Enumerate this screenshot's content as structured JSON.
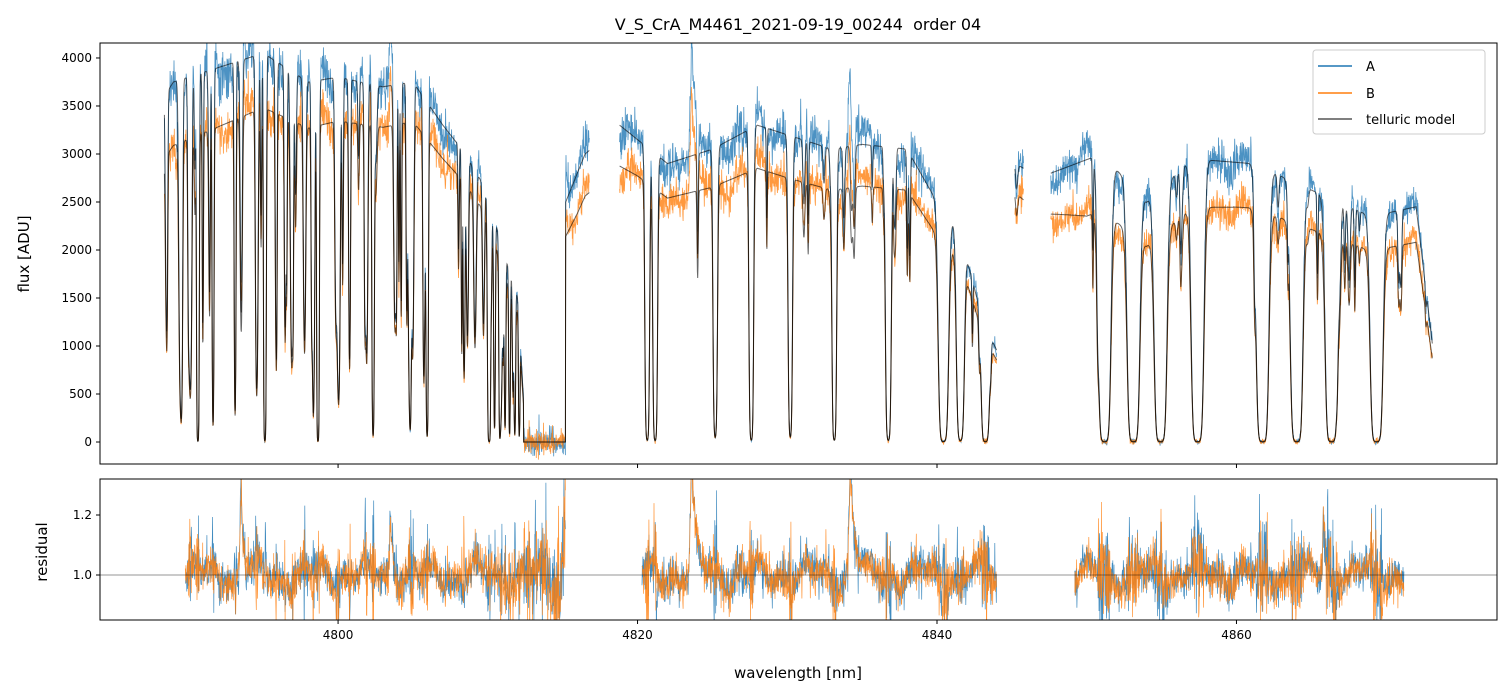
{
  "chart_data": [
    {
      "type": "line",
      "title": "V_S_CrA_M4461_2021-09-19_00244  order 04",
      "xlabel": "wavelength [nm]",
      "ylabel": "flux [ADU]",
      "xlim": [
        4784.1,
        4877.4
      ],
      "ylim": [
        -229,
        4156
      ],
      "xticks": [
        4800,
        4820,
        4840,
        4860
      ],
      "xtick_labels": [
        "4800",
        "4820",
        "4840",
        "4860"
      ],
      "yticks": [
        0,
        500,
        1000,
        1500,
        2000,
        2500,
        3000,
        3500,
        4000
      ],
      "ytick_labels": [
        "0",
        "500",
        "1000",
        "1500",
        "2000",
        "2500",
        "3000",
        "3500",
        "4000"
      ],
      "grid": false,
      "legend": {
        "placement": "top-right",
        "entries": [
          {
            "label": "A",
            "color": "#1f77b4"
          },
          {
            "label": "B",
            "color": "#ff7f0e"
          },
          {
            "label": "telluric model",
            "color": "#555555"
          }
        ]
      },
      "segments": [
        [
          4788.4,
          4816.8
        ],
        [
          4818.8,
          4844.0
        ],
        [
          4845.2,
          4845.8
        ],
        [
          4847.6,
          4873.1
        ]
      ],
      "blocked_range": [
        4812.4,
        4815.2
      ],
      "continuum_A": [
        [
          4788.4,
          3600
        ],
        [
          4789,
          3750
        ],
        [
          4792,
          3900
        ],
        [
          4795,
          4050
        ],
        [
          4798,
          3750
        ],
        [
          4800,
          3800
        ],
        [
          4803,
          3700
        ],
        [
          4805,
          3750
        ],
        [
          4807,
          3300
        ],
        [
          4808.5,
          3000
        ],
        [
          4810,
          2600
        ],
        [
          4811,
          2000
        ],
        [
          4812,
          1500
        ],
        [
          4812.4,
          400
        ],
        [
          4815.2,
          2500
        ],
        [
          4816.5,
          3000
        ],
        [
          4818.8,
          3300
        ],
        [
          4822,
          2900
        ],
        [
          4825,
          3050
        ],
        [
          4828,
          3300
        ],
        [
          4830,
          3200
        ],
        [
          4833,
          3050
        ],
        [
          4835,
          3100
        ],
        [
          4838,
          3050
        ],
        [
          4840,
          2500
        ],
        [
          4841.5,
          2200
        ],
        [
          4843,
          1300
        ],
        [
          4844,
          950
        ],
        [
          4845.2,
          2900
        ],
        [
          4845.8,
          2850
        ],
        [
          4847.6,
          2800
        ],
        [
          4851,
          3000
        ],
        [
          4854,
          2500
        ],
        [
          4857,
          2950
        ],
        [
          4861,
          2900
        ],
        [
          4864,
          2700
        ],
        [
          4866,
          2550
        ],
        [
          4869,
          2350
        ],
        [
          4872,
          2450
        ],
        [
          4873.1,
          1000
        ]
      ],
      "ratio_B_to_A": [
        [
          4788.4,
          0.82
        ],
        [
          4795,
          0.86
        ],
        [
          4800,
          0.88
        ],
        [
          4810,
          0.9
        ],
        [
          4816,
          0.85
        ],
        [
          4820,
          0.88
        ],
        [
          4830,
          0.86
        ],
        [
          4840,
          0.86
        ],
        [
          4845,
          0.9
        ],
        [
          4850,
          0.8
        ],
        [
          4860,
          0.84
        ],
        [
          4873,
          0.85
        ]
      ],
      "absorption_lines_center_tau_width": [
        [
          4790.64,
          6,
          0.07
        ],
        [
          4791.65,
          3,
          0.06
        ],
        [
          4793.12,
          2.5,
          0.06
        ],
        [
          4795.12,
          5,
          0.07
        ],
        [
          4798.66,
          6,
          0.07
        ],
        [
          4802.34,
          4,
          0.07
        ],
        [
          4805.95,
          4,
          0.07
        ],
        [
          4810.09,
          5,
          0.07
        ],
        [
          4810.45,
          2.5,
          0.05
        ],
        [
          4810.8,
          2.5,
          0.05
        ],
        [
          4811.15,
          2.5,
          0.05
        ],
        [
          4811.45,
          3,
          0.05
        ],
        [
          4811.8,
          3,
          0.05
        ],
        [
          4812.1,
          3,
          0.05
        ],
        [
          4820.65,
          5,
          0.12
        ],
        [
          4821.18,
          5,
          0.12
        ],
        [
          4825.19,
          4,
          0.12
        ],
        [
          4827.6,
          5,
          0.12
        ],
        [
          4830.2,
          4,
          0.12
        ],
        [
          4833.14,
          5,
          0.12
        ],
        [
          4836.75,
          5,
          0.15
        ],
        [
          4840.43,
          6,
          0.25
        ],
        [
          4841.56,
          5,
          0.2
        ],
        [
          4843.23,
          6,
          0.2
        ],
        [
          4851.19,
          7,
          0.3
        ],
        [
          4853.12,
          7,
          0.3
        ],
        [
          4854.93,
          7,
          0.3
        ],
        [
          4857.4,
          7,
          0.3
        ],
        [
          4861.74,
          7,
          0.3
        ],
        [
          4864.02,
          7,
          0.3
        ],
        [
          4866.35,
          7,
          0.3
        ],
        [
          4869.36,
          7,
          0.3
        ]
      ],
      "residual_excess_center_amp_width": [
        [
          4793.5,
          0.35,
          0.06
        ],
        [
          4803.5,
          0.22,
          0.08
        ],
        [
          4815.1,
          0.3,
          0.05
        ],
        [
          4823.6,
          0.4,
          0.08
        ],
        [
          4834.2,
          0.38,
          0.1
        ],
        [
          4865.8,
          0.22,
          0.06
        ]
      ]
    },
    {
      "type": "line",
      "title": "",
      "xlabel": "wavelength [nm]",
      "ylabel": "residual",
      "xlim": [
        4784.1,
        4877.4
      ],
      "ylim": [
        0.85,
        1.32
      ],
      "xticks": [
        4800,
        4820,
        4840,
        4860
      ],
      "xtick_labels": [
        "4800",
        "4820",
        "4840",
        "4860"
      ],
      "yticks": [
        1.0,
        1.2
      ],
      "ytick_labels": [
        "1.0",
        "1.2"
      ],
      "reference_line": 1.0,
      "segments": [
        [
          4789.8,
          4815.2
        ],
        [
          4820.3,
          4844.2
        ],
        [
          4849.2,
          4871.2
        ]
      ],
      "series": [
        {
          "name": "A",
          "color": "#1f77b4"
        },
        {
          "name": "B",
          "color": "#ff7f0e"
        }
      ]
    }
  ]
}
